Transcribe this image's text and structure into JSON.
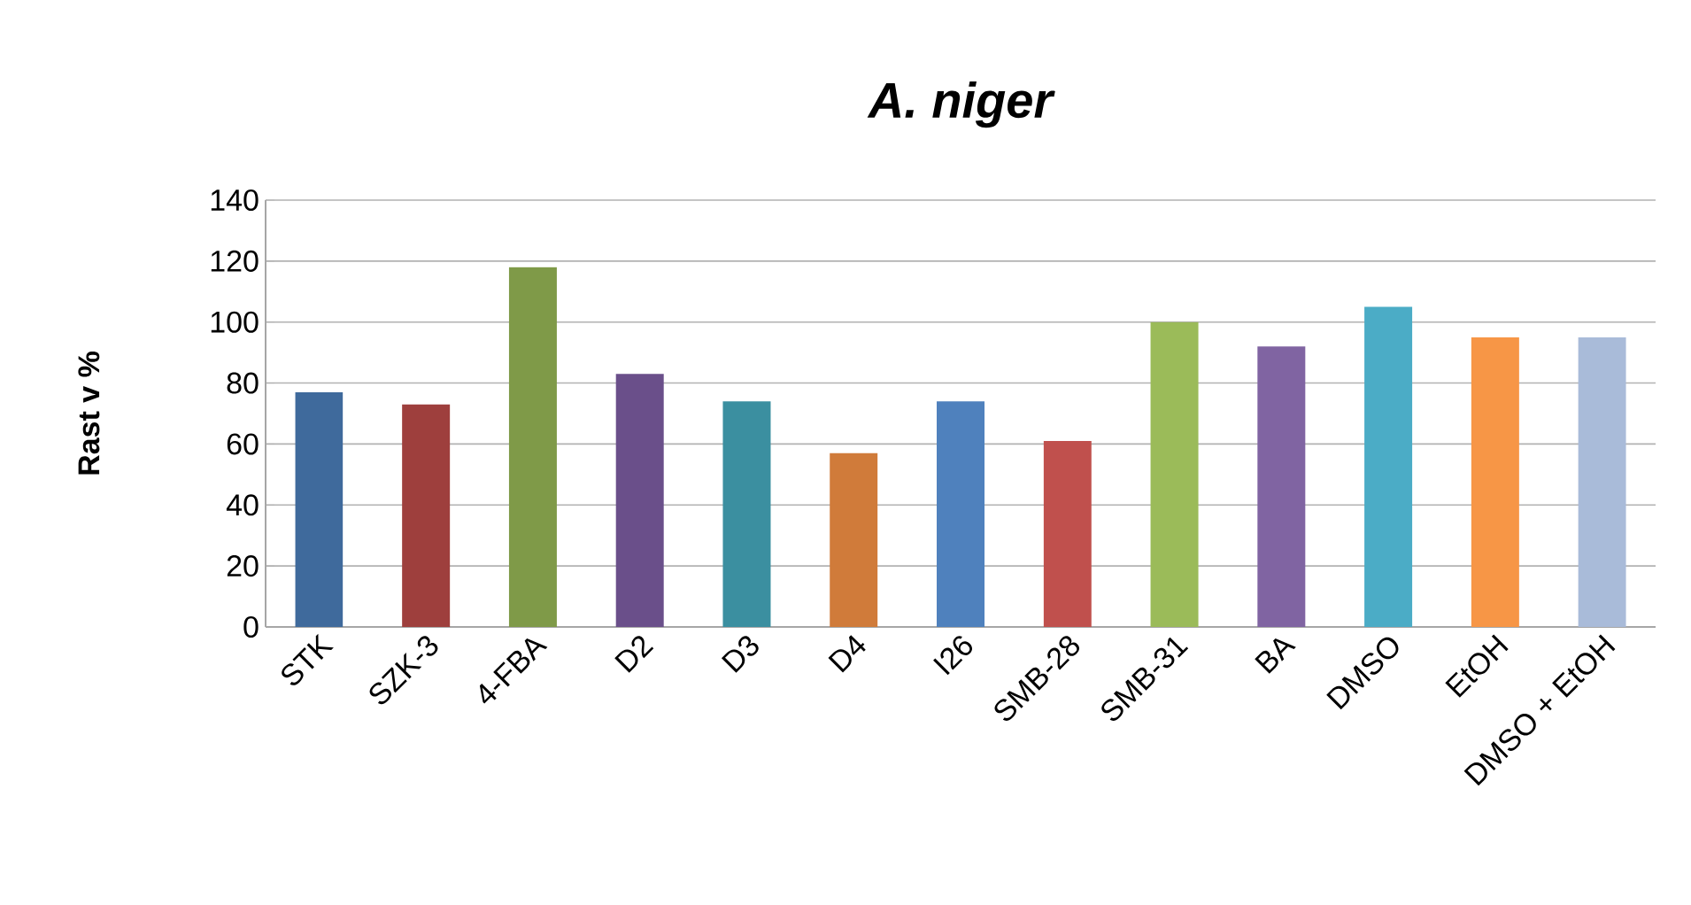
{
  "chart_data": {
    "type": "bar",
    "title": "A. niger",
    "ylabel": "Rast v %",
    "categories": [
      "STK",
      "SZK-3",
      "4-FBA",
      "D2",
      "D3",
      "D4",
      "I26",
      "SMB-28",
      "SMB-31",
      "BA",
      "DMSO",
      "EtOH",
      "DMSO + EtOH"
    ],
    "values": [
      77,
      73,
      118,
      83,
      74,
      57,
      74,
      61,
      100,
      92,
      105,
      95,
      95
    ],
    "colors": [
      "#3f6a9c",
      "#9e3f3d",
      "#7f9a48",
      "#6a4f8a",
      "#3b8fa0",
      "#d07b3a",
      "#4f81bd",
      "#c0504d",
      "#9bbb59",
      "#8064a2",
      "#4bacc6",
      "#f79646",
      "#a9bbd9"
    ],
    "ylim": [
      0,
      140
    ],
    "yticks": [
      0,
      20,
      40,
      60,
      80,
      100,
      120,
      140
    ],
    "grid": "y"
  }
}
